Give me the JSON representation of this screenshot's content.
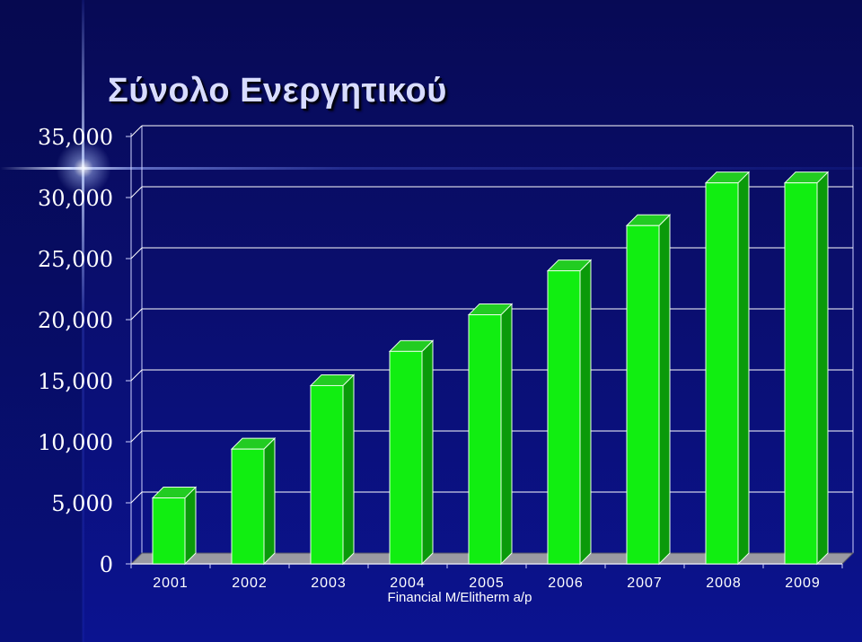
{
  "title": "Σύνολο Ενεργητικού",
  "source_note": "Financial M/Elitherm a/p",
  "colors": {
    "bar_front": "#11ee11",
    "bar_top": "#22cc22",
    "bar_side": "#0a9a0a",
    "floor": "#9a9aa2",
    "grid": "#ffffff",
    "background": "#0a0e6e"
  },
  "chart_data": {
    "type": "bar",
    "title": "Σύνολο Ενεργητικού",
    "categories": [
      "2001",
      "2002",
      "2003",
      "2004",
      "2005",
      "2006",
      "2007",
      "2008",
      "2009"
    ],
    "values": [
      5400,
      9400,
      14600,
      17400,
      20400,
      24000,
      27700,
      31200,
      31200
    ],
    "yticks": [
      "0",
      "5,000",
      "10,000",
      "15,000",
      "20,000",
      "25,000",
      "30,000",
      "35,000"
    ],
    "ylim": [
      0,
      35000
    ],
    "grid": true,
    "legend": "none",
    "style": "3d-columns"
  }
}
